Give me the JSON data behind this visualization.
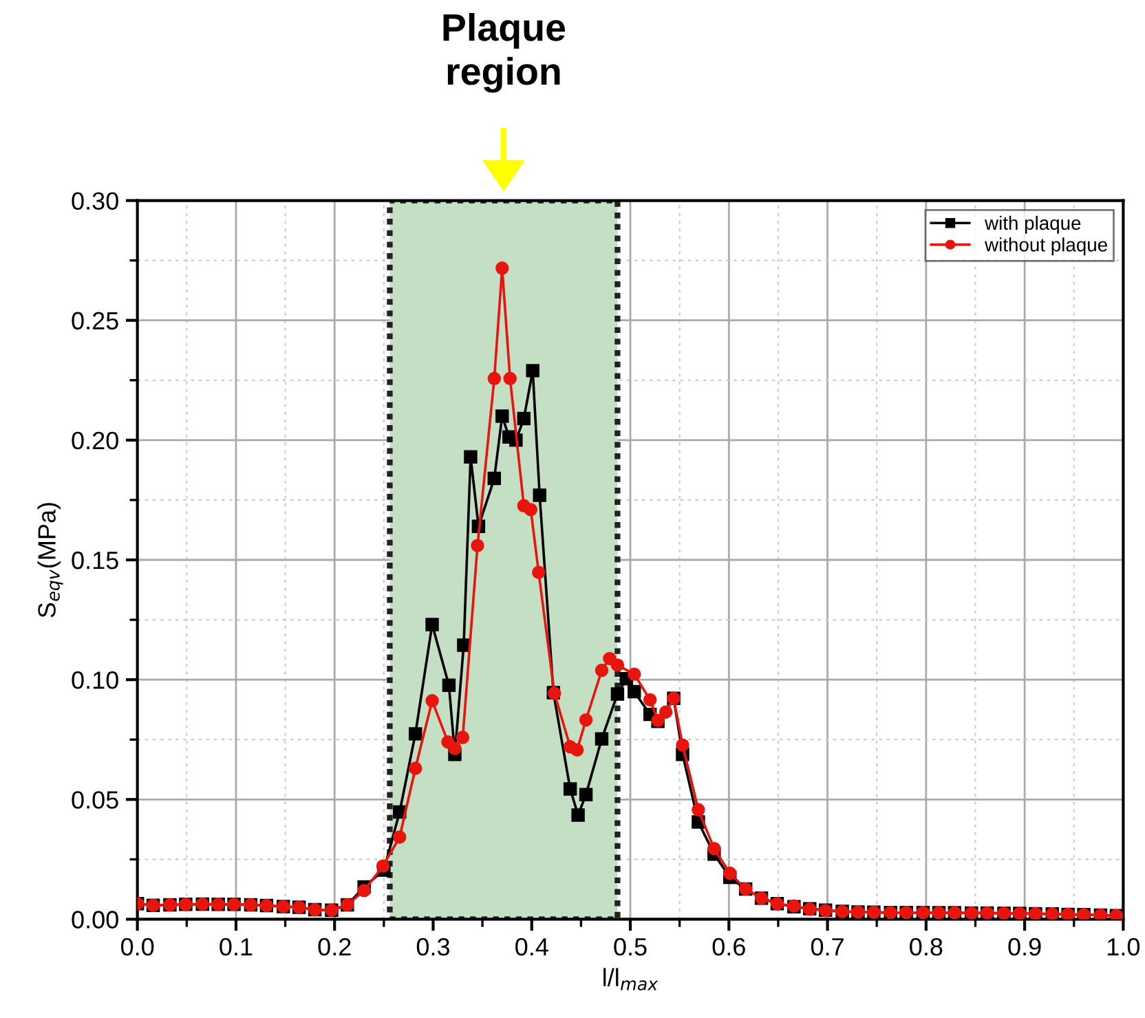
{
  "chart_data": {
    "type": "line",
    "xlabel": "l/l$_{max}$",
    "ylabel": "S$_{eqv}$(MPa)",
    "xlim": [
      0,
      1
    ],
    "ylim": [
      0,
      0.3
    ],
    "xticks": [
      {
        "value": 0,
        "label": "0.0"
      },
      0.1,
      0.2,
      0.3,
      0.4,
      0.5,
      0.6,
      0.7,
      0.8,
      0.9,
      {
        "value": 1,
        "label": "1.0"
      }
    ],
    "yticks": [
      {
        "value": 0,
        "label": "0.00"
      },
      0.05,
      {
        "value": 0.1,
        "label": "0.10"
      },
      0.15,
      {
        "value": 0.2,
        "label": "0.20"
      },
      0.25,
      {
        "value": 0.3,
        "label": "0.30"
      }
    ],
    "grid": true,
    "legend": "top right",
    "line_style": "solid",
    "bands": [
      {
        "axis": "x",
        "from": 0.256,
        "to": 0.487,
        "label": "Plaque region",
        "color": "#c5dfc5"
      }
    ],
    "series": [
      {
        "name": "with plaque",
        "color": "#000000",
        "marker": "square",
        "x": [
          0,
          0.016,
          0.033,
          0.049,
          0.066,
          0.082,
          0.098,
          0.115,
          0.131,
          0.148,
          0.164,
          0.18,
          0.197,
          0.213,
          0.23,
          0.25,
          0.266,
          0.282,
          0.299,
          0.316,
          0.322,
          0.331,
          0.338,
          0.346,
          0.362,
          0.37,
          0.377,
          0.384,
          0.392,
          0.401,
          0.408,
          0.422,
          0.439,
          0.447,
          0.455,
          0.471,
          0.487,
          0.496,
          0.504,
          0.52,
          0.528,
          0.544,
          0.553,
          0.569,
          0.585,
          0.601,
          0.617,
          0.633,
          0.649,
          0.666,
          0.682,
          0.698,
          0.715,
          0.731,
          0.747,
          0.764,
          0.78,
          0.797,
          0.813,
          0.829,
          0.846,
          0.862,
          0.879,
          0.895,
          0.911,
          0.928,
          0.944,
          0.96,
          0.977,
          0.993
        ],
        "values": [
          0.0065,
          0.0058,
          0.006,
          0.0062,
          0.0063,
          0.0062,
          0.0062,
          0.006,
          0.0057,
          0.0053,
          0.005,
          0.004,
          0.0038,
          0.006,
          0.0135,
          0.0205,
          0.0448,
          0.0774,
          0.123,
          0.0977,
          0.0688,
          0.1144,
          0.193,
          0.164,
          0.184,
          0.21,
          0.2013,
          0.2,
          0.209,
          0.229,
          0.177,
          0.0946,
          0.0544,
          0.0435,
          0.052,
          0.0753,
          0.094,
          0.1004,
          0.095,
          0.0855,
          0.0826,
          0.0922,
          0.0688,
          0.0406,
          0.0272,
          0.0175,
          0.0126,
          0.0088,
          0.0065,
          0.0052,
          0.0044,
          0.0038,
          0.0033,
          0.003,
          0.0029,
          0.0028,
          0.0028,
          0.0028,
          0.0027,
          0.0027,
          0.0026,
          0.0026,
          0.0025,
          0.0024,
          0.0023,
          0.0022,
          0.002,
          0.0019,
          0.0017,
          0.0015
        ]
      },
      {
        "name": "without plaque",
        "color": "#e8150f",
        "marker": "circle",
        "x": [
          0,
          0.016,
          0.033,
          0.049,
          0.066,
          0.082,
          0.098,
          0.115,
          0.131,
          0.148,
          0.164,
          0.18,
          0.197,
          0.213,
          0.23,
          0.249,
          0.266,
          0.282,
          0.299,
          0.315,
          0.322,
          0.33,
          0.345,
          0.362,
          0.37,
          0.378,
          0.392,
          0.399,
          0.407,
          0.423,
          0.439,
          0.446,
          0.455,
          0.471,
          0.479,
          0.487,
          0.504,
          0.52,
          0.528,
          0.536,
          0.544,
          0.553,
          0.569,
          0.585,
          0.601,
          0.617,
          0.633,
          0.649,
          0.666,
          0.682,
          0.698,
          0.715,
          0.731,
          0.747,
          0.764,
          0.78,
          0.797,
          0.813,
          0.829,
          0.846,
          0.862,
          0.879,
          0.895,
          0.911,
          0.928,
          0.944,
          0.96,
          0.977,
          0.993
        ],
        "values": [
          0.0065,
          0.0058,
          0.006,
          0.0062,
          0.0063,
          0.0062,
          0.0062,
          0.006,
          0.0057,
          0.0053,
          0.005,
          0.004,
          0.0038,
          0.006,
          0.012,
          0.0222,
          0.0343,
          0.063,
          0.0912,
          0.074,
          0.0713,
          0.0759,
          0.156,
          0.2257,
          0.2718,
          0.2257,
          0.1726,
          0.171,
          0.1448,
          0.0943,
          0.072,
          0.0707,
          0.0832,
          0.1039,
          0.1088,
          0.1061,
          0.1023,
          0.0916,
          0.083,
          0.0865,
          0.0922,
          0.0727,
          0.0457,
          0.0295,
          0.0192,
          0.0126,
          0.0088,
          0.0065,
          0.0055,
          0.0042,
          0.0036,
          0.0032,
          0.003,
          0.0029,
          0.0028,
          0.0028,
          0.0028,
          0.0027,
          0.0027,
          0.0026,
          0.0026,
          0.0025,
          0.0024,
          0.0023,
          0.0022,
          0.002,
          0.0019,
          0.0017,
          0.0015
        ]
      }
    ]
  }
}
